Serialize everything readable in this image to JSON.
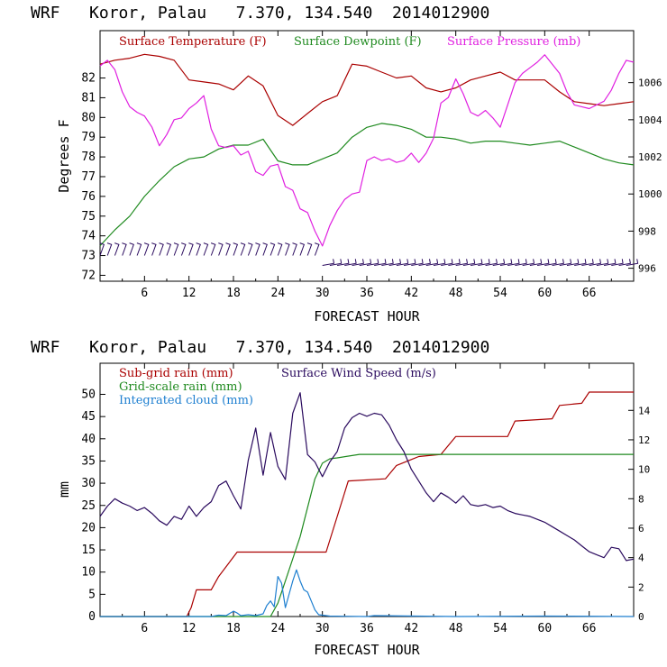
{
  "colors": {
    "temperature": "#aa0000",
    "dewpoint": "#1f8a1f",
    "pressure": "#e020e0",
    "wind_barbs": "#2a0a5e",
    "subgrid_rain": "#aa0000",
    "gridscale_rain": "#1f8a1f",
    "cloud": "#1e7fd0",
    "wind_speed": "#2a0a5e"
  },
  "chart_data": [
    {
      "type": "line",
      "title": "WRF   Koror, Palau   7.370, 134.540  2014012900",
      "xlabel": "FORECAST HOUR",
      "ylabel": "Degrees F",
      "xlim": [
        0,
        72
      ],
      "ylim": [
        71.7,
        84.4
      ],
      "y2lim": [
        995.3,
        1008.8
      ],
      "x_ticks": [
        6,
        12,
        18,
        24,
        30,
        36,
        42,
        48,
        54,
        60,
        66
      ],
      "y_ticks": [
        72,
        73,
        74,
        75,
        76,
        77,
        78,
        79,
        80,
        81,
        82
      ],
      "y2_ticks": [
        996,
        998,
        1000,
        1002,
        1004,
        1006
      ],
      "legend": [
        "Surface Temperature (F)",
        "Surface Dewpoint (F)",
        "Surface Pressure (mb)"
      ],
      "series": [
        {
          "name": "Surface Temperature (F)",
          "axis": "left",
          "color_key": "temperature",
          "x": [
            0,
            2,
            4,
            6,
            8,
            10,
            12,
            14,
            16,
            18,
            20,
            22,
            24,
            26,
            28,
            30,
            32,
            34,
            36,
            38,
            40,
            42,
            44,
            46,
            48,
            50,
            52,
            54,
            56,
            58,
            60,
            62,
            64,
            66,
            68,
            70,
            72
          ],
          "y": [
            82.7,
            82.9,
            83.0,
            83.2,
            83.1,
            82.9,
            81.9,
            81.8,
            81.7,
            81.4,
            82.1,
            81.6,
            80.1,
            79.6,
            80.2,
            80.8,
            81.1,
            82.7,
            82.6,
            82.3,
            82.0,
            82.1,
            81.5,
            81.3,
            81.5,
            81.9,
            82.1,
            82.3,
            81.9,
            81.9,
            81.9,
            81.3,
            80.8,
            80.7,
            80.6,
            80.7,
            80.8
          ]
        },
        {
          "name": "Surface Dewpoint (F)",
          "axis": "left",
          "color_key": "dewpoint",
          "x": [
            0,
            2,
            4,
            6,
            8,
            10,
            12,
            14,
            16,
            18,
            20,
            22,
            24,
            26,
            28,
            30,
            32,
            34,
            36,
            38,
            40,
            42,
            44,
            46,
            48,
            50,
            52,
            54,
            56,
            58,
            60,
            62,
            64,
            66,
            68,
            70,
            72
          ],
          "y": [
            73.5,
            74.3,
            75.0,
            76.0,
            76.8,
            77.5,
            77.9,
            78.0,
            78.4,
            78.6,
            78.6,
            78.9,
            77.8,
            77.6,
            77.6,
            77.9,
            78.2,
            79.0,
            79.5,
            79.7,
            79.6,
            79.4,
            79.0,
            79.0,
            78.9,
            78.7,
            78.8,
            78.8,
            78.7,
            78.6,
            78.7,
            78.8,
            78.5,
            78.2,
            77.9,
            77.7,
            77.6
          ]
        },
        {
          "name": "Surface Pressure (mb)",
          "axis": "right",
          "color_key": "pressure",
          "x": [
            0,
            1,
            2,
            3,
            4,
            5,
            6,
            7,
            8,
            9,
            10,
            11,
            12,
            13,
            14,
            15,
            16,
            17,
            18,
            19,
            20,
            21,
            22,
            23,
            24,
            25,
            26,
            27,
            28,
            29,
            30,
            31,
            32,
            33,
            34,
            35,
            36,
            37,
            38,
            39,
            40,
            41,
            42,
            43,
            44,
            45,
            46,
            47,
            48,
            49,
            50,
            51,
            52,
            53,
            54,
            55,
            56,
            57,
            58,
            59,
            60,
            61,
            62,
            63,
            64,
            65,
            66,
            67,
            68,
            69,
            70,
            71,
            72
          ],
          "y": [
            1006.9,
            1007.2,
            1006.7,
            1005.5,
            1004.7,
            1004.4,
            1004.2,
            1003.6,
            1002.6,
            1003.2,
            1004.0,
            1004.1,
            1004.6,
            1004.9,
            1005.3,
            1003.5,
            1002.6,
            1002.5,
            1002.6,
            1002.1,
            1002.3,
            1001.2,
            1001.0,
            1001.5,
            1001.6,
            1000.4,
            1000.2,
            999.2,
            999.0,
            998.0,
            997.2,
            998.3,
            999.1,
            999.7,
            1000.0,
            1000.1,
            1001.8,
            1002.0,
            1001.8,
            1001.9,
            1001.7,
            1001.8,
            1002.2,
            1001.7,
            1002.2,
            1003.0,
            1004.9,
            1005.2,
            1006.2,
            1005.4,
            1004.4,
            1004.2,
            1004.5,
            1004.1,
            1003.6,
            1004.8,
            1006.0,
            1006.5,
            1006.8,
            1007.1,
            1007.5,
            1007.0,
            1006.5,
            1005.5,
            1004.8,
            1004.7,
            1004.6,
            1004.8,
            1005.0,
            1005.6,
            1006.5,
            1007.2,
            1007.1
          ]
        }
      ],
      "wind_barbs": {
        "description": "surface wind barbs plotted along the bottom of the panel",
        "x": [
          0,
          1,
          2,
          3,
          4,
          5,
          6,
          7,
          8,
          9,
          10,
          11,
          12,
          13,
          14,
          15,
          16,
          17,
          18,
          19,
          20,
          21,
          22,
          23,
          24,
          25,
          26,
          27,
          28,
          29,
          30,
          31,
          32,
          33,
          34,
          35,
          36,
          37,
          38,
          39,
          40,
          41,
          42,
          43,
          44,
          45,
          46,
          47,
          48,
          49,
          50,
          51,
          52,
          53,
          54,
          55,
          56,
          57,
          58,
          59,
          60,
          61,
          62,
          63,
          64,
          65,
          66,
          67,
          68,
          69,
          70,
          71
        ],
        "y": [
          73.0,
          73.0,
          73.0,
          73.0,
          73.0,
          73.0,
          73.0,
          73.0,
          73.0,
          73.0,
          73.0,
          73.0,
          73.0,
          73.0,
          73.0,
          73.0,
          73.0,
          73.0,
          73.0,
          73.0,
          73.0,
          73.0,
          73.0,
          73.0,
          73.0,
          73.0,
          73.0,
          73.0,
          73.0,
          73.0,
          72.5,
          72.5,
          72.5,
          72.5,
          72.5,
          72.5,
          72.5,
          72.5,
          72.5,
          72.5,
          72.5,
          72.5,
          72.5,
          72.5,
          72.5,
          72.5,
          72.5,
          72.5,
          72.5,
          72.5,
          72.5,
          72.5,
          72.5,
          72.5,
          72.5,
          72.5,
          72.5,
          72.5,
          72.5,
          72.5,
          72.5,
          72.5,
          72.5,
          72.5,
          72.5,
          72.5,
          72.5,
          72.5,
          72.5,
          72.5,
          72.5,
          72.5
        ],
        "direction_deg": [
          20,
          20,
          20,
          20,
          20,
          20,
          20,
          20,
          20,
          20,
          20,
          20,
          20,
          20,
          20,
          20,
          20,
          20,
          20,
          20,
          20,
          20,
          20,
          20,
          20,
          20,
          20,
          20,
          20,
          20,
          80,
          80,
          80,
          80,
          80,
          80,
          80,
          80,
          80,
          80,
          80,
          80,
          80,
          80,
          80,
          80,
          80,
          80,
          80,
          80,
          80,
          80,
          80,
          80,
          80,
          80,
          80,
          80,
          80,
          80,
          80,
          80,
          80,
          80,
          80,
          80,
          80,
          80,
          80,
          80,
          80,
          80
        ]
      }
    },
    {
      "type": "line",
      "title": "WRF   Koror, Palau   7.370, 134.540  2014012900",
      "xlabel": "FORECAST HOUR",
      "ylabel": "mm",
      "xlim": [
        0,
        72
      ],
      "ylim": [
        0,
        57
      ],
      "y2lim": [
        0,
        17.2
      ],
      "x_ticks": [
        6,
        12,
        18,
        24,
        30,
        36,
        42,
        48,
        54,
        60,
        66
      ],
      "y_ticks": [
        0,
        5,
        10,
        15,
        20,
        25,
        30,
        35,
        40,
        45,
        50
      ],
      "y2_ticks": [
        0,
        2,
        4,
        6,
        8,
        10,
        12,
        14
      ],
      "legend": [
        "Sub-grid rain (mm)",
        "Grid-scale rain (mm)",
        "Integrated cloud (mm)",
        "Surface Wind Speed (m/s)"
      ],
      "series": [
        {
          "name": "Sub-grid rain (mm)",
          "axis": "left",
          "color_key": "subgrid_rain",
          "x": [
            0,
            11.7,
            12.3,
            13,
            15,
            16,
            18.5,
            26,
            30.5,
            33.5,
            38.5,
            40,
            43,
            46,
            48,
            55,
            56,
            61,
            62,
            65,
            66,
            72
          ],
          "y": [
            0,
            0,
            2,
            6,
            6,
            9,
            14.5,
            14.5,
            14.5,
            30.5,
            31,
            34,
            36,
            36.5,
            40.5,
            40.5,
            44,
            44.5,
            47.5,
            48,
            50.5,
            50.5
          ]
        },
        {
          "name": "Grid-scale rain (mm)",
          "axis": "left",
          "color_key": "gridscale_rain",
          "x": [
            0,
            23,
            24,
            25,
            26,
            27,
            28,
            29,
            30,
            31,
            32,
            35,
            72
          ],
          "y": [
            0,
            0,
            3,
            8,
            13,
            18,
            24.5,
            31,
            34.5,
            35.5,
            35.7,
            36.5,
            36.5
          ]
        },
        {
          "name": "Integrated cloud (mm)",
          "axis": "left",
          "color_key": "cloud",
          "x": [
            0,
            15,
            16,
            17,
            18,
            18.5,
            19,
            20,
            21,
            22,
            22.5,
            23,
            23.5,
            24,
            24.5,
            25,
            25.5,
            26,
            26.5,
            27,
            27.5,
            28,
            28.5,
            29,
            29.5,
            30,
            31,
            36,
            37,
            48,
            60,
            72
          ],
          "y": [
            0,
            0,
            0.3,
            0.2,
            1.2,
            0.8,
            0.2,
            0.4,
            0.2,
            0.6,
            2.5,
            3.5,
            2.2,
            9.0,
            7.5,
            2.0,
            5.0,
            8.0,
            10.5,
            8.0,
            6.0,
            5.5,
            3.5,
            1.5,
            0.4,
            0.3,
            0.1,
            0,
            0.2,
            0,
            0.1,
            0
          ]
        },
        {
          "name": "Surface Wind Speed (m/s)",
          "axis": "right",
          "color_key": "wind_speed",
          "x": [
            0,
            1,
            2,
            3,
            4,
            5,
            6,
            7,
            8,
            9,
            10,
            11,
            12,
            13,
            14,
            15,
            16,
            17,
            18,
            19,
            20,
            21,
            22,
            23,
            24,
            25,
            26,
            27,
            28,
            29,
            30,
            31,
            32,
            33,
            34,
            35,
            36,
            37,
            38,
            39,
            40,
            41,
            42,
            43,
            44,
            45,
            46,
            47,
            48,
            49,
            50,
            51,
            52,
            53,
            54,
            55,
            56,
            57,
            58,
            59,
            60,
            61,
            62,
            63,
            64,
            65,
            66,
            67,
            68,
            69,
            70,
            71,
            72
          ],
          "y": [
            6.8,
            7.5,
            8.0,
            7.7,
            7.5,
            7.2,
            7.4,
            7.0,
            6.5,
            6.2,
            6.8,
            6.6,
            7.5,
            6.8,
            7.4,
            7.8,
            8.9,
            9.2,
            8.2,
            7.3,
            10.6,
            12.8,
            9.6,
            12.5,
            10.2,
            9.3,
            13.8,
            15.2,
            11.0,
            10.5,
            9.5,
            10.5,
            11.2,
            12.8,
            13.5,
            13.8,
            13.6,
            13.8,
            13.7,
            13.0,
            12.0,
            11.2,
            10.0,
            9.2,
            8.4,
            7.8,
            8.4,
            8.1,
            7.7,
            8.2,
            7.6,
            7.5,
            7.6,
            7.4,
            7.5,
            7.2,
            7.0,
            6.9,
            6.8,
            6.6,
            6.4,
            6.1,
            5.8,
            5.5,
            5.2,
            4.8,
            4.4,
            4.2,
            4.0,
            4.7,
            4.6,
            3.8,
            3.9
          ]
        }
      ]
    }
  ]
}
